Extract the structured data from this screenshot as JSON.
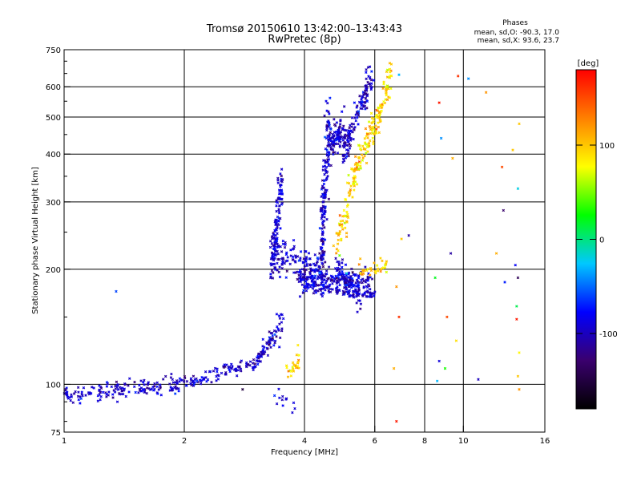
{
  "chart_data": {
    "type": "scatter",
    "title": "Tromsø 20150610 13:42:00–13:43:43",
    "subtitle": "RwPretec (8p)",
    "xlabel": "Frequency [MHz]",
    "ylabel": "Stationary phase Virtual Height [km]",
    "xscale": "log",
    "yscale": "log",
    "xlim": [
      1,
      16
    ],
    "ylim": [
      75,
      750
    ],
    "x_ticks": [
      {
        "v": 1,
        "label": "1"
      },
      {
        "v": 2,
        "label": "2"
      },
      {
        "v": 4,
        "label": "4"
      },
      {
        "v": 6,
        "label": "6"
      },
      {
        "v": 8,
        "label": "8"
      },
      {
        "v": 10,
        "label": "10"
      },
      {
        "v": 16,
        "label": "16"
      }
    ],
    "y_ticks": [
      {
        "v": 75,
        "label": "75"
      },
      {
        "v": 100,
        "label": "100"
      },
      {
        "v": 200,
        "label": "200"
      },
      {
        "v": 300,
        "label": "300"
      },
      {
        "v": 400,
        "label": "400"
      },
      {
        "v": 500,
        "label": "500"
      },
      {
        "v": 600,
        "label": "600"
      },
      {
        "v": 750,
        "label": "750"
      }
    ],
    "x_grid": [
      2,
      4,
      6,
      8,
      10
    ],
    "y_grid": [
      100,
      200,
      300,
      400,
      500,
      600
    ],
    "grid": true,
    "phases_info": {
      "title": "Phases",
      "line_o": "mean, sd,O: -90.3, 17.0",
      "line_x": "mean, sd,X:  93.6, 23.7"
    },
    "colorbar": {
      "label": "[deg]",
      "min": -180,
      "max": 180,
      "ticks": [
        {
          "v": 100,
          "label": "100"
        },
        {
          "v": 0,
          "label": "0"
        },
        {
          "v": -100,
          "label": "-100"
        }
      ],
      "colors": [
        "#000000",
        "#3a006e",
        "#0000ff",
        "#00c8ff",
        "#00ff00",
        "#ffff00",
        "#ff8000",
        "#ff0000"
      ]
    },
    "traces": [
      {
        "name": "O",
        "phase": -95,
        "phase_sd": 15,
        "segments": [
          {
            "f0": 1.0,
            "f1": 2.0,
            "h0": 94,
            "h1": 100,
            "n": 160,
            "jitter": 0.025
          },
          {
            "f0": 2.0,
            "f1": 3.0,
            "h0": 100,
            "h1": 113,
            "n": 90,
            "jitter": 0.02
          },
          {
            "f0": 3.0,
            "f1": 3.35,
            "h0": 112,
            "h1": 135,
            "n": 60,
            "jitter": 0.025
          },
          {
            "f0": 3.35,
            "f1": 3.5,
            "h0": 130,
            "h1": 145,
            "n": 20,
            "jitter": 0.04
          },
          {
            "f0": 3.3,
            "f1": 3.5,
            "h0": 185,
            "h1": 340,
            "n": 110,
            "jitter": 0.05
          },
          {
            "f0": 3.3,
            "f1": 4.5,
            "h0": 220,
            "h1": 195,
            "n": 170,
            "jitter": 0.06
          },
          {
            "f0": 3.9,
            "f1": 5.9,
            "h0": 190,
            "h1": 185,
            "n": 150,
            "jitter": 0.03
          },
          {
            "f0": 4.0,
            "f1": 6.0,
            "h0": 180,
            "h1": 172,
            "n": 100,
            "jitter": 0.015
          },
          {
            "f0": 4.4,
            "f1": 4.6,
            "h0": 210,
            "h1": 500,
            "n": 160,
            "jitter": 0.06
          },
          {
            "f0": 4.6,
            "f1": 5.0,
            "h0": 420,
            "h1": 460,
            "n": 110,
            "jitter": 0.05
          },
          {
            "f0": 4.8,
            "f1": 5.5,
            "h0": 200,
            "h1": 170,
            "n": 100,
            "jitter": 0.04
          },
          {
            "f0": 5.0,
            "f1": 5.9,
            "h0": 400,
            "h1": 640,
            "n": 140,
            "jitter": 0.04
          },
          {
            "f0": 3.4,
            "f1": 3.8,
            "h0": 92,
            "h1": 88,
            "n": 12,
            "jitter": 0.03
          }
        ]
      },
      {
        "name": "X",
        "phase": 95,
        "phase_sd": 20,
        "segments": [
          {
            "f0": 3.6,
            "f1": 3.9,
            "h0": 105,
            "h1": 118,
            "n": 25,
            "jitter": 0.03
          },
          {
            "f0": 4.8,
            "f1": 5.4,
            "h0": 230,
            "h1": 360,
            "n": 70,
            "jitter": 0.05
          },
          {
            "f0": 5.3,
            "f1": 6.1,
            "h0": 360,
            "h1": 480,
            "n": 80,
            "jitter": 0.05
          },
          {
            "f0": 6.0,
            "f1": 6.6,
            "h0": 470,
            "h1": 650,
            "n": 70,
            "jitter": 0.04
          },
          {
            "f0": 5.5,
            "f1": 6.5,
            "h0": 200,
            "h1": 205,
            "n": 35,
            "jitter": 0.03
          }
        ]
      }
    ],
    "scattered_points": [
      {
        "f": 1.35,
        "h": 175,
        "phase": -60
      },
      {
        "f": 7.0,
        "h": 240,
        "phase": 100
      },
      {
        "f": 7.3,
        "h": 245,
        "phase": -110
      },
      {
        "f": 6.8,
        "h": 180,
        "phase": 120
      },
      {
        "f": 6.9,
        "h": 150,
        "phase": 160
      },
      {
        "f": 6.7,
        "h": 110,
        "phase": 110
      },
      {
        "f": 6.8,
        "h": 80,
        "phase": 170
      },
      {
        "f": 8.5,
        "h": 190,
        "phase": 20
      },
      {
        "f": 8.7,
        "h": 545,
        "phase": 170
      },
      {
        "f": 8.8,
        "h": 440,
        "phase": -40
      },
      {
        "f": 8.7,
        "h": 115,
        "phase": -90
      },
      {
        "f": 8.6,
        "h": 102,
        "phase": -30
      },
      {
        "f": 9.0,
        "h": 110,
        "phase": 30
      },
      {
        "f": 9.1,
        "h": 150,
        "phase": 150
      },
      {
        "f": 9.3,
        "h": 220,
        "phase": -110
      },
      {
        "f": 9.4,
        "h": 390,
        "phase": 110
      },
      {
        "f": 9.6,
        "h": 130,
        "phase": 90
      },
      {
        "f": 9.7,
        "h": 640,
        "phase": 160
      },
      {
        "f": 10.3,
        "h": 630,
        "phase": -40
      },
      {
        "f": 10.9,
        "h": 103,
        "phase": -100
      },
      {
        "f": 11.4,
        "h": 580,
        "phase": 120
      },
      {
        "f": 12.1,
        "h": 220,
        "phase": 110
      },
      {
        "f": 12.5,
        "h": 370,
        "phase": 150
      },
      {
        "f": 12.6,
        "h": 285,
        "phase": -130
      },
      {
        "f": 12.7,
        "h": 185,
        "phase": -70
      },
      {
        "f": 13.3,
        "h": 410,
        "phase": 100
      },
      {
        "f": 13.5,
        "h": 205,
        "phase": -80
      },
      {
        "f": 13.6,
        "h": 160,
        "phase": 10
      },
      {
        "f": 13.7,
        "h": 105,
        "phase": 100
      },
      {
        "f": 13.8,
        "h": 480,
        "phase": 100
      },
      {
        "f": 13.7,
        "h": 325,
        "phase": -20
      },
      {
        "f": 13.7,
        "h": 190,
        "phase": -140
      },
      {
        "f": 13.8,
        "h": 121,
        "phase": 80
      },
      {
        "f": 13.8,
        "h": 97,
        "phase": 120
      },
      {
        "f": 13.6,
        "h": 148,
        "phase": 170
      },
      {
        "f": 6.9,
        "h": 645,
        "phase": -30
      },
      {
        "f": 5.1,
        "h": 195,
        "phase": -20
      },
      {
        "f": 2.8,
        "h": 97,
        "phase": -150
      }
    ]
  }
}
